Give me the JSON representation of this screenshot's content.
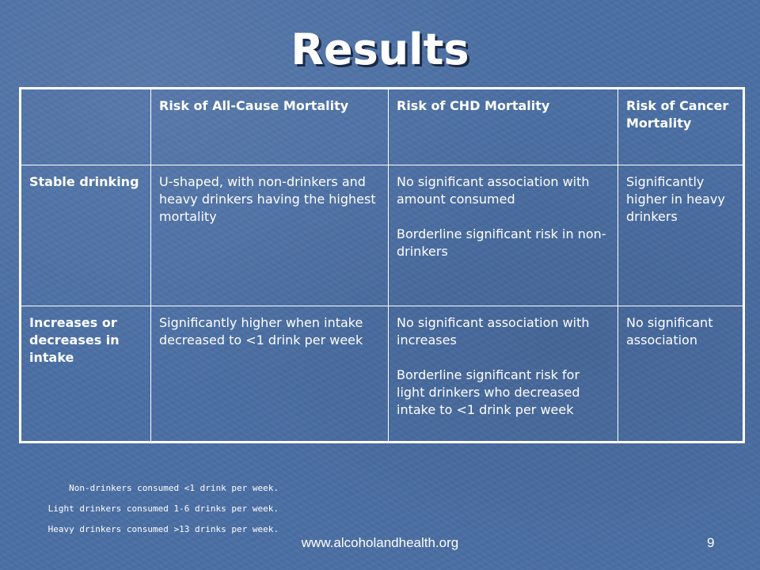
{
  "slide": {
    "title": "Results",
    "footer_url": "www.alcoholandhealth.org",
    "slide_number": "9"
  },
  "table": {
    "corner": "",
    "columns": [
      "Risk of All-Cause Mortality",
      "Risk of CHD Mortality",
      "Risk of Cancer Mortality"
    ],
    "rows": [
      {
        "label": "Stable drinking",
        "all_cause": "U-shaped, with non-drinkers and heavy drinkers having the highest mortality",
        "chd": [
          "No significant association with amount consumed",
          "Borderline significant risk in non-drinkers"
        ],
        "cancer": "Significantly higher in heavy drinkers"
      },
      {
        "label": "Increases or decreases in intake",
        "all_cause": "Significantly higher when intake decreased to <1 drink per week",
        "chd": [
          "No significant association with increases",
          "Borderline significant risk for light drinkers who decreased intake to <1 drink per week"
        ],
        "cancer": "No significant association"
      }
    ]
  },
  "footnotes": [
    "Non-drinkers consumed <1 drink per week.",
    "Light drinkers consumed 1-6 drinks per week.",
    "Heavy drinkers consumed >13 drinks per week."
  ],
  "colors": {
    "background": "#4a6ea3",
    "text": "#ffffff",
    "table_border": "#ffffff"
  }
}
